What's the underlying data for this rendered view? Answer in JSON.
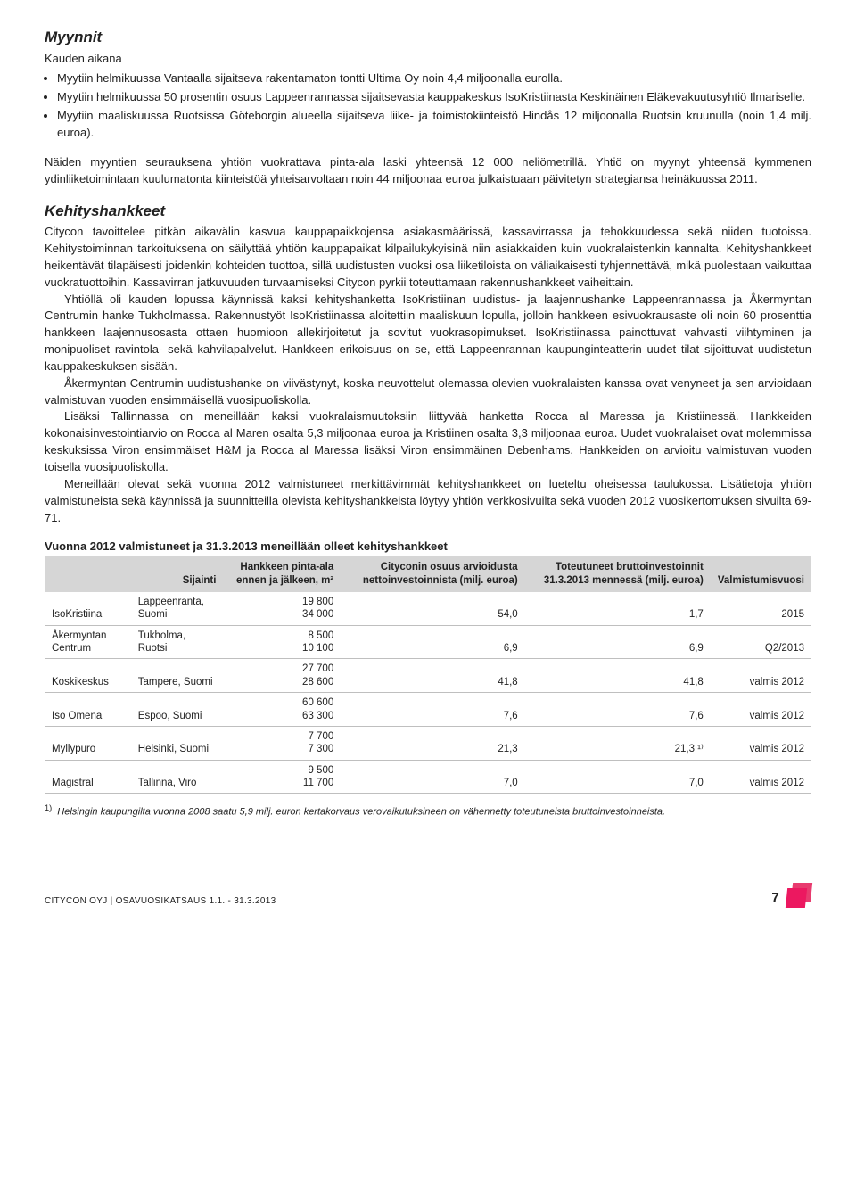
{
  "sales": {
    "heading": "Myynnit",
    "subhead": "Kauden aikana",
    "bullets": [
      "Myytiin helmikuussa Vantaalla sijaitseva rakentamaton tontti Ultima Oy noin 4,4 miljoonalla eurolla.",
      "Myytiin helmikuussa 50 prosentin osuus Lappeenrannassa sijaitsevasta kauppakeskus IsoKristiinasta Keskinäinen Eläkevakuutusyhtiö Ilmariselle.",
      "Myytiin maaliskuussa Ruotsissa Göteborgin alueella sijaitseva liike- ja toimistokiinteistö Hindås 12 miljoonalla Ruotsin kruunulla (noin 1,4 milj. euroa)."
    ],
    "after": "Näiden myyntien seurauksena yhtiön vuokrattava pinta-ala laski yhteensä 12 000 neliömetrillä. Yhtiö on myynyt yhteensä kymmenen ydinliiketoimintaan kuulumatonta kiinteistöä yhteisarvoltaan noin 44 miljoonaa euroa julkaistuaan päivitetyn strategiansa heinäkuussa 2011."
  },
  "dev": {
    "heading": "Kehityshankkeet",
    "p1": "Citycon tavoittelee pitkän aikavälin kasvua kauppapaikkojensa asiakasmäärissä, kassavirrassa ja tehokkuudessa sekä niiden tuotoissa. Kehitystoiminnan tarkoituksena on säilyttää yhtiön kauppapaikat kilpailukykyisinä niin asiakkaiden kuin vuokralaistenkin kannalta. Kehityshankkeet heikentävät tilapäisesti joidenkin kohteiden tuottoa, sillä uudistusten vuoksi osa liiketiloista on väliaikaisesti tyhjennettävä, mikä puolestaan vaikuttaa vuokratuottoihin. Kassavirran jatkuvuuden turvaamiseksi Citycon pyrkii toteuttamaan rakennushankkeet vaiheittain.",
    "p2": "Yhtiöllä oli kauden lopussa käynnissä kaksi kehityshanketta IsoKristiinan uudistus- ja laajennushanke Lappeenrannassa ja Åkermyntan Centrumin hanke Tukholmassa. Rakennustyöt IsoKristiinassa aloitettiin maaliskuun lopulla, jolloin hankkeen esivuokrausaste oli noin 60 prosenttia hankkeen laajennusosasta ottaen huomioon allekirjoitetut ja sovitut vuokrasopimukset. IsoKristiinassa painottuvat vahvasti viihtyminen ja monipuoliset ravintola- sekä kahvilapalvelut. Hankkeen erikoisuus on se, että Lappeenrannan kaupunginteatterin uudet tilat sijoittuvat uudistetun kauppakeskuksen sisään.",
    "p3": "Åkermyntan Centrumin uudistushanke on viivästynyt, koska neuvottelut olemassa olevien vuokralaisten kanssa ovat venyneet ja sen arvioidaan valmistuvan vuoden ensimmäisellä vuosipuoliskolla.",
    "p4": "Lisäksi Tallinnassa on meneillään kaksi vuokralaismuutoksiin liittyvää hanketta Rocca al Maressa ja Kristiinessä. Hankkeiden kokonaisinvestointiarvio on Rocca al Maren osalta 5,3 miljoonaa euroa ja Kristiinen osalta 3,3 miljoonaa euroa. Uudet vuokralaiset ovat molemmissa keskuksissa Viron ensimmäiset H&M ja Rocca al Maressa lisäksi Viron ensimmäinen Debenhams. Hankkeiden on arvioitu valmistuvan vuoden toisella vuosipuoliskolla.",
    "p5": "Meneillään olevat sekä vuonna 2012 valmistuneet merkittävimmät kehityshankkeet on lueteltu oheisessa taulukossa. Lisätietoja yhtiön valmistuneista sekä käynnissä ja suunnitteilla olevista kehityshankkeista löytyy yhtiön verkkosivuilta sekä vuoden 2012 vuosikertomuksen sivuilta 69-71."
  },
  "table": {
    "title": "Vuonna 2012 valmistuneet ja 31.3.2013 meneillään olleet kehityshankkeet",
    "headers": {
      "c1": "",
      "c2": "Sijainti",
      "c3": "Hankkeen pinta-ala ennen ja jälkeen, m²",
      "c4": "Cityconin osuus arvioidusta nettoinvestoinnista (milj. euroa)",
      "c5": "Toteutuneet bruttoinvestoinnit 31.3.2013 mennessä (milj. euroa)",
      "c6": "Valmistumisvuosi"
    },
    "rows": [
      {
        "name": "IsoKristiina",
        "loc": "Lappeenranta, Suomi",
        "area1": "19 800",
        "area2": "34 000",
        "net": "54,0",
        "gross": "1,7",
        "year": "2015"
      },
      {
        "name": "Åkermyntan Centrum",
        "loc": "Tukholma, Ruotsi",
        "area1": "8 500",
        "area2": "10 100",
        "net": "6,9",
        "gross": "6,9",
        "year": "Q2/2013"
      },
      {
        "name": "Koskikeskus",
        "loc": "Tampere, Suomi",
        "area1": "27 700",
        "area2": "28 600",
        "net": "41,8",
        "gross": "41,8",
        "year": "valmis 2012"
      },
      {
        "name": "Iso Omena",
        "loc": "Espoo, Suomi",
        "area1": "60 600",
        "area2": "63 300",
        "net": "7,6",
        "gross": "7,6",
        "year": "valmis 2012"
      },
      {
        "name": "Myllypuro",
        "loc": "Helsinki, Suomi",
        "area1": "7 700",
        "area2": "7 300",
        "net": "21,3",
        "gross": "21,3 ¹⁾",
        "year": "valmis 2012"
      },
      {
        "name": "Magistral",
        "loc": "Tallinna, Viro",
        "area1": "9 500",
        "area2": "11 700",
        "net": "7,0",
        "gross": "7,0",
        "year": "valmis 2012"
      }
    ],
    "footnote_sup": "1)",
    "footnote": "Helsingin kaupungilta vuonna 2008 saatu 5,9 milj. euron kertakorvaus verovaikutuksineen on vähennetty toteutuneista bruttoinvestoinneista."
  },
  "footer": {
    "left": "CITYCON OYJ | OSAVUOSIKATSAUS 1.1. - 31.3.2013",
    "page": "7"
  },
  "colors": {
    "header_bg": "#d6d6d6",
    "row_border": "#bfbfbf",
    "text": "#222222",
    "logo_back": "#e83b6f",
    "logo_front": "#ec1860"
  }
}
